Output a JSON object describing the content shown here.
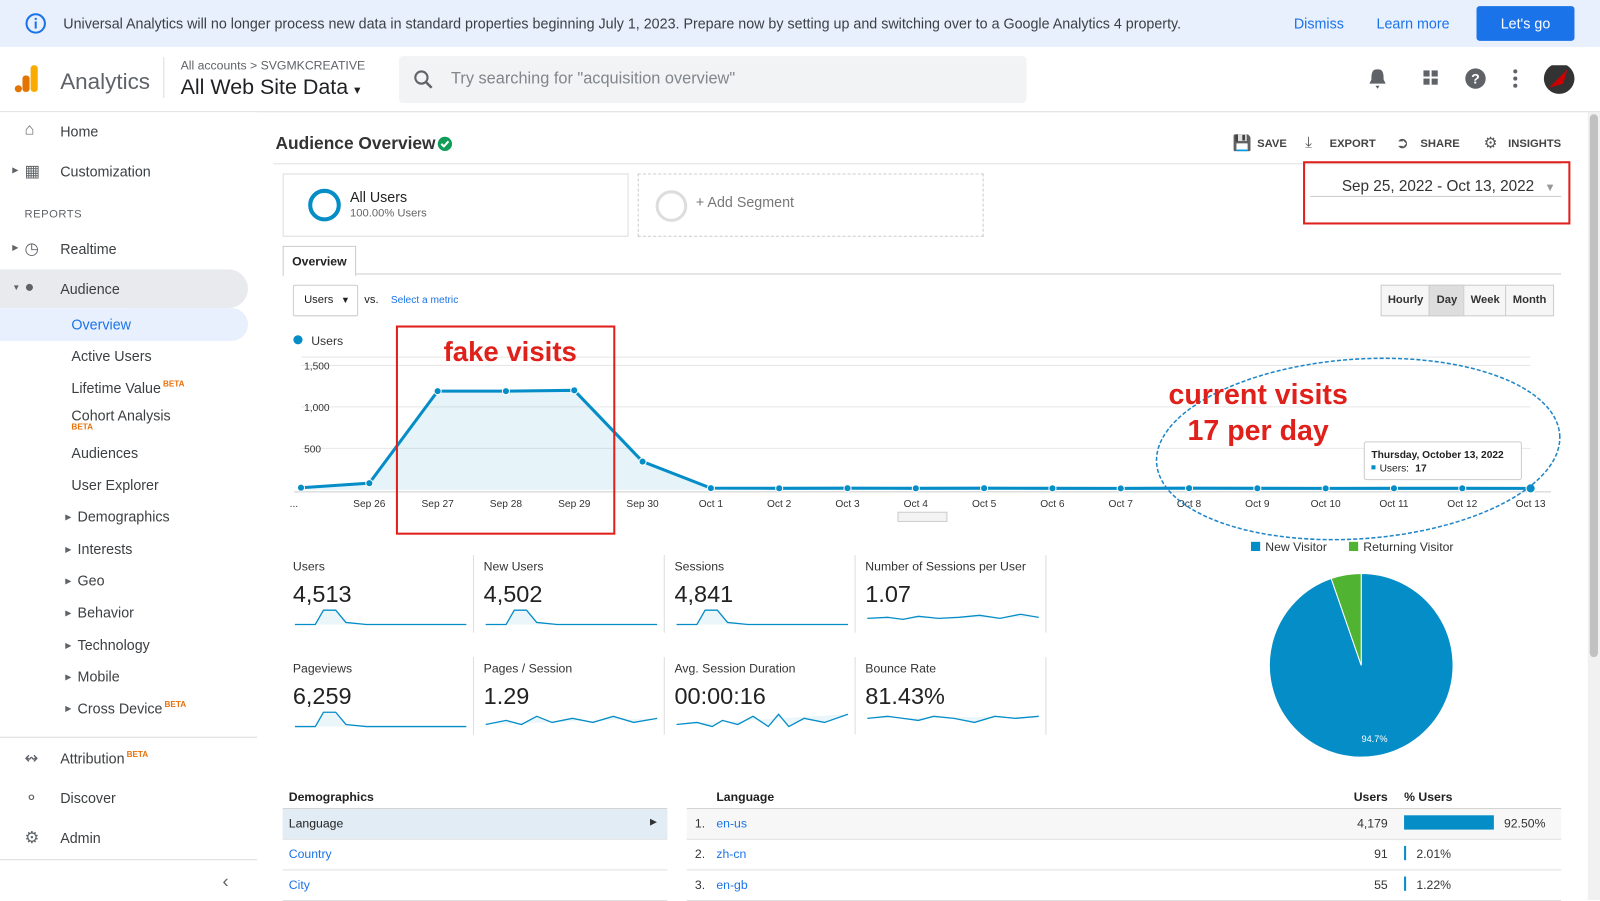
{
  "banner": {
    "message": "Universal Analytics will no longer process new data in standard properties beginning July 1, 2023. Prepare now by setting up and switching over to a Google Analytics 4 property.",
    "dismiss": "Dismiss",
    "learn_more": "Learn more",
    "cta": "Let's go"
  },
  "header": {
    "product": "Analytics",
    "breadcrumb": [
      "All accounts",
      "SVGMKCREATIVE"
    ],
    "view": "All Web Site Data",
    "search_placeholder": "Try searching for \"acquisition overview\""
  },
  "sidebar": {
    "top": [
      "Home",
      "Customization"
    ],
    "section": "REPORTS",
    "reports": [
      "Realtime",
      "Audience"
    ],
    "audience": [
      {
        "label": "Overview"
      },
      {
        "label": "Active Users"
      },
      {
        "label": "Lifetime Value",
        "badge": "BETA"
      },
      {
        "label": "Cohort Analysis",
        "badge": "BETA"
      },
      {
        "label": "Audiences"
      },
      {
        "label": "User Explorer"
      },
      {
        "label": "Demographics"
      },
      {
        "label": "Interests"
      },
      {
        "label": "Geo"
      },
      {
        "label": "Behavior"
      },
      {
        "label": "Technology"
      },
      {
        "label": "Mobile"
      },
      {
        "label": "Cross Device",
        "badge": "BETA"
      }
    ],
    "bottom": [
      {
        "label": "Attribution",
        "badge": "BETA"
      },
      {
        "label": "Discover"
      },
      {
        "label": "Admin"
      }
    ]
  },
  "report": {
    "title": "Audience Overview",
    "actions": [
      "SAVE",
      "EXPORT",
      "SHARE",
      "INSIGHTS"
    ],
    "date_range": "Sep 25, 2022 - Oct 13, 2022",
    "segment": {
      "name": "All Users",
      "detail": "100.00% Users"
    },
    "add_segment": "+ Add Segment",
    "tab": "Overview",
    "metric": "Users",
    "vs": "vs.",
    "select_metric": "Select a metric",
    "granularity": [
      "Hourly",
      "Day",
      "Week",
      "Month"
    ]
  },
  "scorecards": [
    {
      "label": "Users",
      "value": "4,513"
    },
    {
      "label": "New Users",
      "value": "4,502"
    },
    {
      "label": "Sessions",
      "value": "4,841"
    },
    {
      "label": "Number of Sessions per User",
      "value": "1.07"
    },
    {
      "label": "Pageviews",
      "value": "6,259"
    },
    {
      "label": "Pages / Session",
      "value": "1.29"
    },
    {
      "label": "Avg. Session Duration",
      "value": "00:00:16"
    },
    {
      "label": "Bounce Rate",
      "value": "81.43%"
    }
  ],
  "demographics": {
    "title": "Demographics",
    "items": [
      "Language",
      "Country",
      "City"
    ]
  },
  "language_table": {
    "headers": [
      "Language",
      "Users",
      "% Users"
    ],
    "rows": [
      {
        "rank": "1.",
        "language": "en-us",
        "users": "4,179",
        "pct": {
          "value": 92.5,
          "label": "92.50%"
        }
      },
      {
        "rank": "2.",
        "language": "zh-cn",
        "users": "91",
        "pct": {
          "value": 2.01,
          "label": "2.01%"
        }
      },
      {
        "rank": "3.",
        "language": "en-gb",
        "users": "55",
        "pct": {
          "value": 1.22,
          "label": "1.22%"
        }
      }
    ]
  },
  "chart_data": [
    {
      "type": "line",
      "categories": [
        "...",
        "Sep 26",
        "Sep 27",
        "Sep 28",
        "Sep 29",
        "Sep 30",
        "Oct 1",
        "Oct 2",
        "Oct 3",
        "Oct 4",
        "Oct 5",
        "Oct 6",
        "Oct 7",
        "Oct 8",
        "Oct 9",
        "Oct 10",
        "Oct 11",
        "Oct 12",
        "Oct 13"
      ],
      "series": [
        {
          "name": "Users",
          "color": "#058dc7",
          "values": [
            25,
            80,
            1190,
            1190,
            1200,
            340,
            20,
            18,
            19,
            18,
            19,
            18,
            17,
            19,
            18,
            17,
            18,
            18,
            17
          ]
        }
      ],
      "ylim": [
        0,
        1600
      ],
      "yticks": [
        500,
        {
          "value": 1000,
          "label": "1,000"
        },
        {
          "value": 1500,
          "label": "1,500"
        }
      ],
      "grid": true,
      "tooltip": {
        "title": "Thursday, October 13, 2022",
        "label": "Users:"
      },
      "annotations": [
        "fake visits",
        "current visits",
        "17 per day"
      ]
    },
    {
      "type": "pie",
      "categories": [
        "New Visitor",
        "Returning Visitor"
      ],
      "values": [
        94.7,
        5.3
      ],
      "colors": [
        "#058dc7",
        "#50b432"
      ],
      "value_labels": [
        "94.7%",
        null
      ]
    }
  ]
}
